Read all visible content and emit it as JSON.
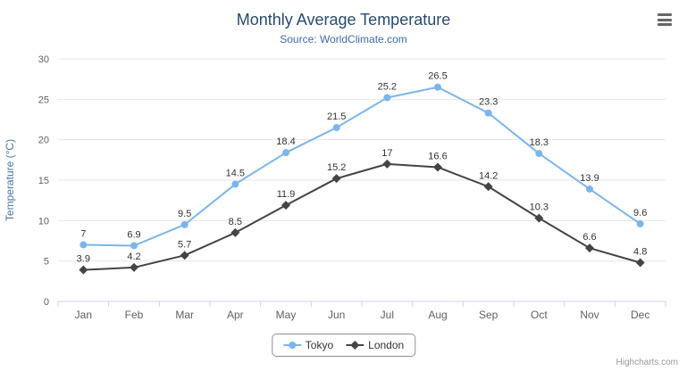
{
  "header": {
    "title": "Monthly Average Temperature",
    "subtitle": "Source: WorldClimate.com"
  },
  "credits": {
    "label": "Highcharts.com"
  },
  "menu": {
    "icon": "hamburger-menu-icon"
  },
  "chart_data": {
    "type": "line",
    "title": "Monthly Average Temperature",
    "subtitle": "Source: WorldClimate.com",
    "categories": [
      "Jan",
      "Feb",
      "Mar",
      "Apr",
      "May",
      "Jun",
      "Jul",
      "Aug",
      "Sep",
      "Oct",
      "Nov",
      "Dec"
    ],
    "series": [
      {
        "name": "Tokyo",
        "color": "#7cb5ec",
        "marker": "circle",
        "values": [
          7,
          6.9,
          9.5,
          14.5,
          18.4,
          21.5,
          25.2,
          26.5,
          23.3,
          18.3,
          13.9,
          9.6
        ]
      },
      {
        "name": "London",
        "color": "#434348",
        "marker": "diamond",
        "values": [
          3.9,
          4.2,
          5.7,
          8.5,
          11.9,
          15.2,
          17,
          16.6,
          14.2,
          10.3,
          6.6,
          4.8
        ]
      }
    ],
    "xlabel": "",
    "ylabel": "Temperature (°C)",
    "ylim": [
      0,
      30
    ],
    "ytick_interval": 5,
    "grid": true,
    "legend_position": "bottom",
    "data_labels": true,
    "axis_line_color": "#ccd6eb",
    "grid_color": "#e6e6e6"
  }
}
